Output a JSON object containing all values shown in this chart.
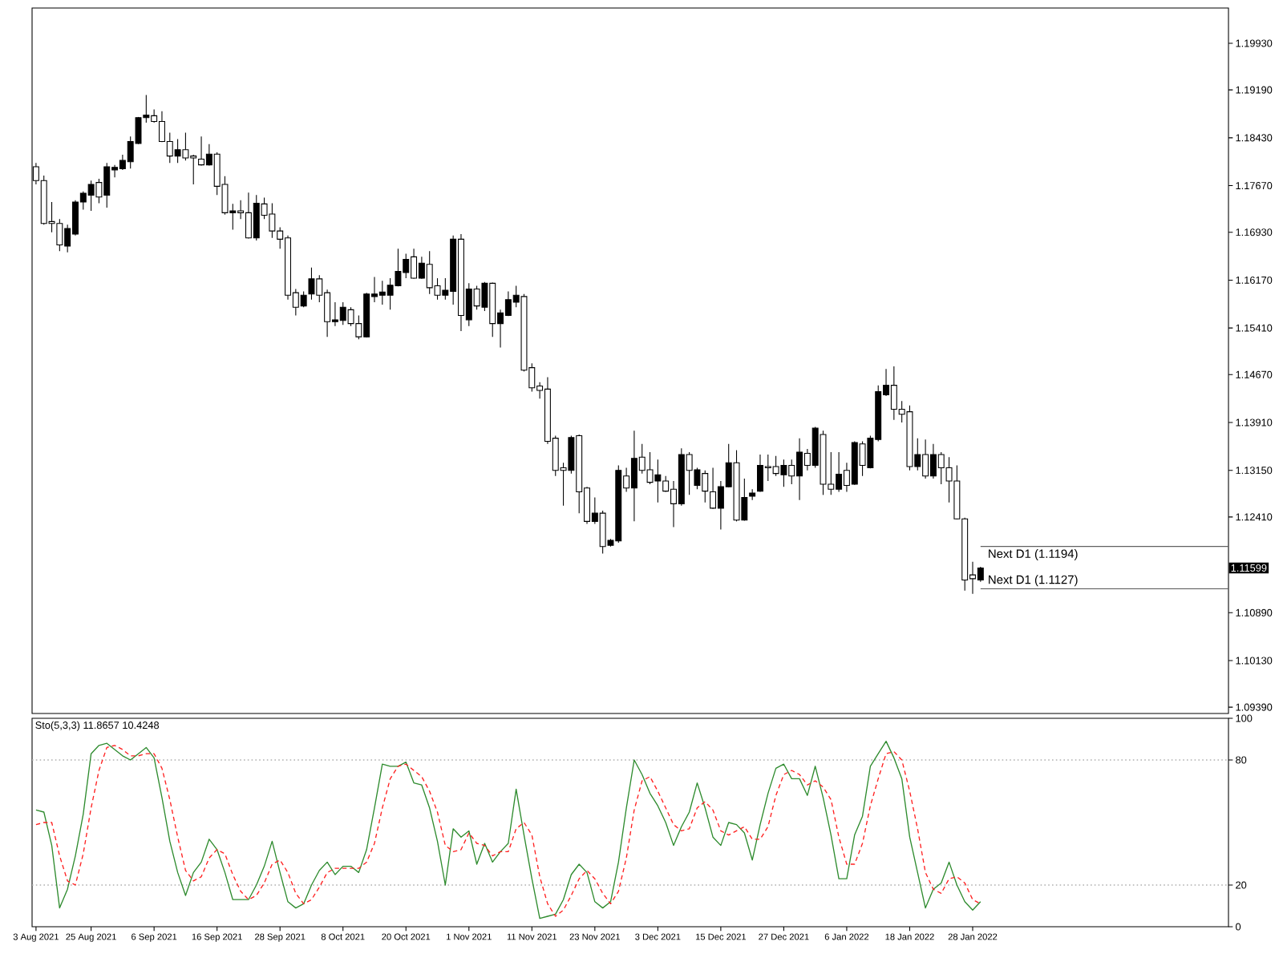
{
  "chart_data": [
    {
      "type": "candlestick",
      "color": "#000000",
      "categories": [
        null,
        null,
        null,
        null,
        null,
        null,
        null,
        null,
        null,
        null,
        null,
        null,
        null,
        null,
        null,
        null,
        null,
        null,
        null,
        null,
        null,
        null,
        null,
        null,
        null,
        null,
        null,
        null,
        null,
        null,
        null,
        null,
        null,
        null,
        null,
        null,
        null,
        null,
        null,
        null,
        null,
        null,
        null,
        null,
        null,
        null,
        null,
        null,
        null,
        null,
        null,
        null,
        null,
        null,
        null,
        null,
        null,
        null,
        null,
        null,
        null,
        null,
        null,
        null,
        null,
        null,
        null,
        null,
        null,
        null,
        null,
        null,
        null,
        null,
        null,
        null,
        null,
        null,
        null,
        null,
        null,
        null,
        null,
        null,
        null,
        null,
        null,
        null,
        null,
        null,
        null,
        null,
        null,
        null,
        null,
        null,
        null,
        null,
        null,
        null,
        null,
        null,
        null,
        null,
        null,
        null,
        null,
        null,
        null,
        null,
        null,
        null,
        null,
        null,
        null,
        null,
        null,
        null,
        null,
        null,
        null,
        null,
        null,
        null,
        null,
        null,
        null,
        null,
        null,
        null,
        null,
        null,
        null,
        null,
        null,
        null,
        null,
        null,
        null,
        null,
        null,
        null,
        null,
        null,
        null,
        null,
        null,
        null,
        null,
        null,
        null,
        null
      ],
      "ohlc": [
        [
          1.1797,
          1.1803,
          1.1769,
          1.1775
        ],
        [
          1.1775,
          1.1783,
          1.1705,
          1.1707
        ],
        [
          1.171,
          1.1741,
          1.1693,
          1.1707
        ],
        [
          1.1707,
          1.1714,
          1.1663,
          1.1673
        ],
        [
          1.1671,
          1.1705,
          1.1661,
          1.1699
        ],
        [
          1.169,
          1.1744,
          1.1688,
          1.1741
        ],
        [
          1.1741,
          1.1758,
          1.1729,
          1.1755
        ],
        [
          1.1752,
          1.1775,
          1.1727,
          1.1769
        ],
        [
          1.1772,
          1.1778,
          1.1739,
          1.1749
        ],
        [
          1.1752,
          1.1803,
          1.1732,
          1.1797
        ],
        [
          1.1792,
          1.18,
          1.178,
          1.1796
        ],
        [
          1.1794,
          1.1816,
          1.1792,
          1.1807
        ],
        [
          1.1805,
          1.1845,
          1.1794,
          1.1837
        ],
        [
          1.1834,
          1.1876,
          1.1833,
          1.1875
        ],
        [
          1.1875,
          1.1911,
          1.1867,
          1.1879
        ],
        [
          1.1878,
          1.1888,
          1.1867,
          1.1869
        ],
        [
          1.1869,
          1.1885,
          1.1836,
          1.1837
        ],
        [
          1.1837,
          1.1851,
          1.1803,
          1.1814
        ],
        [
          1.1814,
          1.1841,
          1.1803,
          1.1824
        ],
        [
          1.1824,
          1.1851,
          1.1807,
          1.1811
        ],
        [
          1.1814,
          1.1816,
          1.1769,
          1.1811
        ],
        [
          1.1809,
          1.1845,
          1.1799,
          1.18
        ],
        [
          1.18,
          1.1833,
          1.1799,
          1.1817
        ],
        [
          1.1817,
          1.182,
          1.1752,
          1.1766
        ],
        [
          1.1769,
          1.1782,
          1.1721,
          1.1724
        ],
        [
          1.1724,
          1.1738,
          1.1697,
          1.1727
        ],
        [
          1.1727,
          1.1744,
          1.1714,
          1.1724
        ],
        [
          1.1724,
          1.1756,
          1.1683,
          1.1684
        ],
        [
          1.1684,
          1.1752,
          1.168,
          1.1739
        ],
        [
          1.1738,
          1.1748,
          1.1714,
          1.172
        ],
        [
          1.1722,
          1.1739,
          1.1684,
          1.1695
        ],
        [
          1.1695,
          1.1701,
          1.1667,
          1.1682
        ],
        [
          1.1684,
          1.1688,
          1.1586,
          1.1593
        ],
        [
          1.1597,
          1.1603,
          1.1561,
          1.1574
        ],
        [
          1.1576,
          1.1599,
          1.1574,
          1.1593
        ],
        [
          1.1595,
          1.1637,
          1.1586,
          1.1619
        ],
        [
          1.1619,
          1.1625,
          1.1582,
          1.1593
        ],
        [
          1.1597,
          1.1602,
          1.1527,
          1.1551
        ],
        [
          1.1551,
          1.1582,
          1.1544,
          1.1554
        ],
        [
          1.1553,
          1.1582,
          1.1546,
          1.1574
        ],
        [
          1.157,
          1.1574,
          1.1544,
          1.1548
        ],
        [
          1.1548,
          1.1561,
          1.1523,
          1.1527
        ],
        [
          1.1527,
          1.1597,
          1.1526,
          1.1595
        ],
        [
          1.1591,
          1.1622,
          1.1582,
          1.1595
        ],
        [
          1.1593,
          1.1616,
          1.1578,
          1.1598
        ],
        [
          1.1593,
          1.162,
          1.157,
          1.1609
        ],
        [
          1.1608,
          1.1667,
          1.1607,
          1.1631
        ],
        [
          1.1629,
          1.1659,
          1.162,
          1.165
        ],
        [
          1.1654,
          1.1667,
          1.1619,
          1.162
        ],
        [
          1.162,
          1.1654,
          1.1619,
          1.1644
        ],
        [
          1.1642,
          1.1663,
          1.1595,
          1.1605
        ],
        [
          1.1608,
          1.162,
          1.1586,
          1.1593
        ],
        [
          1.1593,
          1.162,
          1.1586,
          1.1601
        ],
        [
          1.1599,
          1.1688,
          1.1578,
          1.1682
        ],
        [
          1.1682,
          1.169,
          1.1536,
          1.1561
        ],
        [
          1.1554,
          1.1612,
          1.1544,
          1.1603
        ],
        [
          1.1603,
          1.1608,
          1.157,
          1.1576
        ],
        [
          1.1574,
          1.1614,
          1.1568,
          1.1612
        ],
        [
          1.1612,
          1.1613,
          1.1527,
          1.1548
        ],
        [
          1.1548,
          1.157,
          1.151,
          1.1565
        ],
        [
          1.1561,
          1.1599,
          1.156,
          1.1586
        ],
        [
          1.1582,
          1.1608,
          1.1574,
          1.1593
        ],
        [
          1.1591,
          1.1595,
          1.1472,
          1.1474
        ],
        [
          1.1478,
          1.1485,
          1.144,
          1.1446
        ],
        [
          1.1449,
          1.1455,
          1.1429,
          1.1442
        ],
        [
          1.1444,
          1.1463,
          1.1357,
          1.1361
        ],
        [
          1.1366,
          1.137,
          1.1306,
          1.1315
        ],
        [
          1.1319,
          1.1327,
          1.1259,
          1.1315
        ],
        [
          1.1315,
          1.137,
          1.131,
          1.1367
        ],
        [
          1.137,
          1.1372,
          1.1247,
          1.1281
        ],
        [
          1.1287,
          1.1289,
          1.123,
          1.1234
        ],
        [
          1.1234,
          1.1272,
          1.123,
          1.1247
        ],
        [
          1.1247,
          1.1251,
          1.1183,
          1.1194
        ],
        [
          1.1196,
          1.1206,
          1.1194,
          1.1204
        ],
        [
          1.1203,
          1.1323,
          1.12,
          1.1315
        ],
        [
          1.1306,
          1.1319,
          1.1281,
          1.1287
        ],
        [
          1.1287,
          1.1378,
          1.1234,
          1.1334
        ],
        [
          1.1336,
          1.1357,
          1.131,
          1.1315
        ],
        [
          1.1316,
          1.1344,
          1.1293,
          1.1296
        ],
        [
          1.1298,
          1.1332,
          1.1264,
          1.1308
        ],
        [
          1.1298,
          1.1306,
          1.1281,
          1.1282
        ],
        [
          1.1285,
          1.1298,
          1.1225,
          1.1262
        ],
        [
          1.1262,
          1.135,
          1.1259,
          1.134
        ],
        [
          1.134,
          1.1344,
          1.1276,
          1.1315
        ],
        [
          1.1291,
          1.1319,
          1.1285,
          1.1316
        ],
        [
          1.131,
          1.1315,
          1.1264,
          1.1282
        ],
        [
          1.1281,
          1.1319,
          1.1254,
          1.1255
        ],
        [
          1.1255,
          1.1298,
          1.1221,
          1.1289
        ],
        [
          1.1289,
          1.1357,
          1.1288,
          1.1327
        ],
        [
          1.1327,
          1.1347,
          1.1234,
          1.1236
        ],
        [
          1.1236,
          1.1302,
          1.1235,
          1.1272
        ],
        [
          1.1274,
          1.1285,
          1.1268,
          1.1279
        ],
        [
          1.1282,
          1.134,
          1.1281,
          1.1323
        ],
        [
          1.1321,
          1.134,
          1.1298,
          1.1319
        ],
        [
          1.1321,
          1.1338,
          1.1306,
          1.131
        ],
        [
          1.1308,
          1.1332,
          1.1289,
          1.1323
        ],
        [
          1.1323,
          1.1332,
          1.1293,
          1.1306
        ],
        [
          1.1306,
          1.1366,
          1.1268,
          1.1344
        ],
        [
          1.1342,
          1.1349,
          1.1315,
          1.1323
        ],
        [
          1.1323,
          1.1384,
          1.1319,
          1.1382
        ],
        [
          1.1372,
          1.1378,
          1.1276,
          1.1293
        ],
        [
          1.1293,
          1.1344,
          1.1276,
          1.1285
        ],
        [
          1.1285,
          1.1344,
          1.1281,
          1.1309
        ],
        [
          1.1315,
          1.1327,
          1.1281,
          1.1291
        ],
        [
          1.1293,
          1.1361,
          1.1292,
          1.1359
        ],
        [
          1.1357,
          1.1361,
          1.1306,
          1.1323
        ],
        [
          1.1319,
          1.137,
          1.1318,
          1.1366
        ],
        [
          1.1364,
          1.145,
          1.1361,
          1.144
        ],
        [
          1.1435,
          1.1476,
          1.1433,
          1.145
        ],
        [
          1.145,
          1.148,
          1.1395,
          1.1412
        ],
        [
          1.1412,
          1.1425,
          1.1391,
          1.1404
        ],
        [
          1.1408,
          1.1418,
          1.1315,
          1.1321
        ],
        [
          1.1321,
          1.1366,
          1.1315,
          1.134
        ],
        [
          1.134,
          1.1364,
          1.1302,
          1.1306
        ],
        [
          1.1306,
          1.1357,
          1.1302,
          1.134
        ],
        [
          1.134,
          1.1344,
          1.1293,
          1.1319
        ],
        [
          1.1319,
          1.1336,
          1.1264,
          1.1298
        ],
        [
          1.1298,
          1.1323,
          1.1237,
          1.1238
        ],
        [
          1.1238,
          1.124,
          1.1124,
          1.1141
        ],
        [
          1.1149,
          1.117,
          1.1119,
          1.1143
        ],
        [
          1.1141,
          1.1162,
          1.1138,
          1.116
        ],
        null,
        null,
        null,
        null,
        null,
        null,
        null,
        null,
        null,
        null,
        null,
        null,
        null,
        null,
        null,
        null,
        null,
        null,
        null,
        null,
        null,
        null,
        null,
        null,
        null,
        null,
        null,
        null,
        null,
        null,
        null
      ],
      "ylim": [
        1.0929,
        1.2049
      ],
      "yticks": [
        {
          "value": 1.1993,
          "label": "1.19930"
        },
        {
          "value": 1.1919,
          "label": "1.19190"
        },
        {
          "value": 1.1843,
          "label": "1.18430"
        },
        {
          "value": 1.1767,
          "label": "1.17670"
        },
        {
          "value": 1.1693,
          "label": "1.16930"
        },
        {
          "value": 1.1617,
          "label": "1.16170"
        },
        {
          "value": 1.1541,
          "label": "1.15410"
        },
        {
          "value": 1.1467,
          "label": "1.14670"
        },
        {
          "value": 1.1391,
          "label": "1.13910"
        },
        {
          "value": 1.1315,
          "label": "1.13150"
        },
        {
          "value": 1.1241,
          "label": "1.12410"
        },
        {
          "value": 1.1089,
          "label": "1.10890"
        },
        {
          "value": 1.1013,
          "label": "1.10130"
        },
        {
          "value": 1.0939,
          "label": "1.09390"
        }
      ],
      "ref_lines": [
        {
          "axis": "y",
          "value": 1.1194,
          "label": "Next D1 (1.1194)",
          "color": "#606060"
        },
        {
          "axis": "y",
          "value": 1.1127,
          "label": "Next D1 (1.1127)",
          "color": "#606060"
        }
      ],
      "annotations": [
        "1.11599"
      ]
    },
    {
      "type": "line",
      "title": "Sto(5,3,3) 11.8657 10.4248",
      "categories": [
        "3 Aug 2021",
        null,
        null,
        null,
        null,
        null,
        null,
        "25 Aug 2021",
        null,
        null,
        null,
        null,
        null,
        null,
        null,
        "6 Sep 2021",
        null,
        null,
        null,
        null,
        null,
        null,
        null,
        "16 Sep 2021",
        null,
        null,
        null,
        null,
        null,
        null,
        null,
        "28 Sep 2021",
        null,
        null,
        null,
        null,
        null,
        null,
        null,
        "8 Oct 2021",
        null,
        null,
        null,
        null,
        null,
        null,
        null,
        "20 Oct 2021",
        null,
        null,
        null,
        null,
        null,
        null,
        null,
        "1 Nov 2021",
        null,
        null,
        null,
        null,
        null,
        null,
        null,
        "11 Nov 2021",
        null,
        null,
        null,
        null,
        null,
        null,
        null,
        "23 Nov 2021",
        null,
        null,
        null,
        null,
        null,
        null,
        null,
        "3 Dec 2021",
        null,
        null,
        null,
        null,
        null,
        null,
        null,
        "15 Dec 2021",
        null,
        null,
        null,
        null,
        null,
        null,
        null,
        "27 Dec 2021",
        null,
        null,
        null,
        null,
        null,
        null,
        null,
        "6 Jan 2022",
        null,
        null,
        null,
        null,
        null,
        null,
        null,
        "18 Jan 2022",
        null,
        null,
        null,
        null,
        null,
        null,
        null,
        "28 Jan 2022",
        null,
        null,
        null,
        null,
        null,
        null,
        null,
        null,
        null,
        null,
        null,
        null,
        null,
        null,
        null,
        null,
        null,
        null,
        null,
        null,
        null,
        null,
        null,
        null,
        null,
        null,
        null,
        null,
        null,
        null,
        null,
        null
      ],
      "series": [
        {
          "color": "#2e8b2e",
          "line_style": "solid",
          "values": [
            56,
            55,
            39,
            9,
            18,
            34,
            54,
            83,
            87,
            88,
            85,
            82,
            80,
            83,
            86,
            81,
            62,
            41,
            26,
            15,
            26,
            31,
            42,
            37,
            26,
            13,
            13,
            13,
            20,
            29,
            41,
            26,
            12,
            9,
            11,
            20,
            27,
            31,
            25,
            29,
            29,
            26,
            37,
            57,
            78,
            77,
            77,
            79,
            69,
            68,
            57,
            41,
            20,
            47,
            43,
            46,
            30,
            40,
            31,
            36,
            40,
            66,
            44,
            23,
            4,
            5,
            6,
            13,
            25,
            30,
            26,
            12,
            9,
            12,
            31,
            57,
            80,
            73,
            64,
            58,
            50,
            39,
            48,
            55,
            69,
            57,
            43,
            39,
            50,
            49,
            45,
            32,
            49,
            64,
            76,
            78,
            71,
            71,
            63,
            77,
            62,
            44,
            23,
            23,
            44,
            53,
            77,
            83,
            89,
            81,
            71,
            43,
            26,
            9,
            18,
            21,
            31,
            20,
            12,
            8,
            12,
            null,
            null,
            null,
            null,
            null,
            null,
            null,
            null,
            null,
            null,
            null,
            null,
            null,
            null,
            null,
            null,
            null,
            null,
            null,
            null,
            null,
            null,
            null,
            null,
            null,
            null,
            null,
            null,
            null,
            null,
            null
          ]
        },
        {
          "color": "#ff2020",
          "line_style": "dashed",
          "values": [
            49,
            50,
            50,
            34,
            22,
            20,
            35,
            57,
            75,
            86,
            87,
            85,
            82,
            82,
            83,
            83,
            76,
            61,
            43,
            27,
            22,
            24,
            33,
            37,
            35,
            25,
            17,
            13,
            15,
            21,
            30,
            32,
            26,
            16,
            11,
            13,
            19,
            26,
            28,
            28,
            28,
            28,
            31,
            40,
            57,
            71,
            77,
            78,
            75,
            72,
            65,
            55,
            39,
            36,
            37,
            45,
            40,
            39,
            34,
            36,
            36,
            47,
            50,
            44,
            24,
            11,
            5,
            8,
            15,
            23,
            27,
            23,
            16,
            11,
            17,
            33,
            56,
            70,
            72,
            65,
            57,
            49,
            46,
            47,
            57,
            60,
            56,
            46,
            44,
            46,
            48,
            42,
            42,
            48,
            63,
            73,
            75,
            73,
            68,
            70,
            67,
            61,
            43,
            30,
            30,
            40,
            58,
            71,
            83,
            84,
            80,
            65,
            47,
            26,
            18,
            16,
            23,
            24,
            21,
            13,
            11,
            null,
            null,
            null,
            null,
            null,
            null,
            null,
            null,
            null,
            null,
            null,
            null,
            null,
            null,
            null,
            null,
            null,
            null,
            null,
            null,
            null,
            null,
            null,
            null,
            null,
            null,
            null,
            null,
            null,
            null,
            null
          ]
        }
      ],
      "ylim": [
        0,
        100
      ],
      "yticks": [
        0,
        20,
        80,
        100
      ],
      "ref_lines": [
        {
          "axis": "y",
          "value": 20,
          "color": "#b0b0b0",
          "line_style": "dotted"
        },
        {
          "axis": "y",
          "value": 80,
          "color": "#b0b0b0",
          "line_style": "dotted"
        }
      ]
    }
  ]
}
